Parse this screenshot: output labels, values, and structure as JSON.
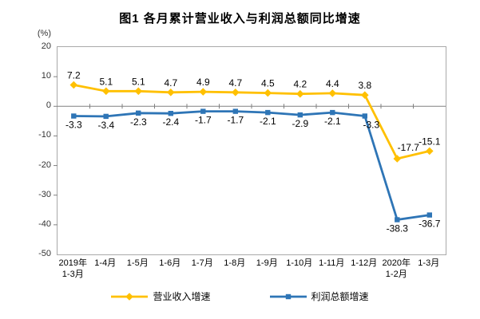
{
  "title": "图1  各月累计营业收入与利润总额同比增速",
  "chart_data": {
    "type": "line",
    "title": "图1  各月累计营业收入与利润总额同比增速",
    "unit_label": "(%)",
    "categories": [
      "2019年\n1-3月",
      "1-4月",
      "1-5月",
      "1-6月",
      "1-7月",
      "1-8月",
      "1-9月",
      "1-10月",
      "1-11月",
      "1-12月",
      "2020年\n1-2月",
      "1-3月"
    ],
    "series": [
      {
        "name": "营业收入增速",
        "color": "#FFC000",
        "marker": "diamond",
        "labels_position": "above",
        "values": [
          7.2,
          5.1,
          5.1,
          4.7,
          4.9,
          4.7,
          4.5,
          4.2,
          4.4,
          3.8,
          -17.7,
          -15.1
        ],
        "label_dx": {
          "10": 14
        },
        "label_dy": {
          "10": -10
        }
      },
      {
        "name": "利润总额增速",
        "color": "#2E75B6",
        "marker": "square",
        "labels_position": "below",
        "values": [
          -3.3,
          -3.4,
          -2.3,
          -2.4,
          -1.7,
          -1.7,
          -2.1,
          -2.9,
          -2.1,
          -3.3,
          -38.3,
          -36.7
        ],
        "label_dx": {
          "9": 8
        },
        "label_dy": {}
      }
    ],
    "ylim": [
      -50,
      20
    ],
    "yticks": [
      20,
      10,
      0,
      -10,
      -20,
      -30,
      -40,
      -50
    ],
    "grid": false,
    "axis_color": "#808080",
    "border_color": "#a9a9a9",
    "legend_position": "bottom"
  }
}
